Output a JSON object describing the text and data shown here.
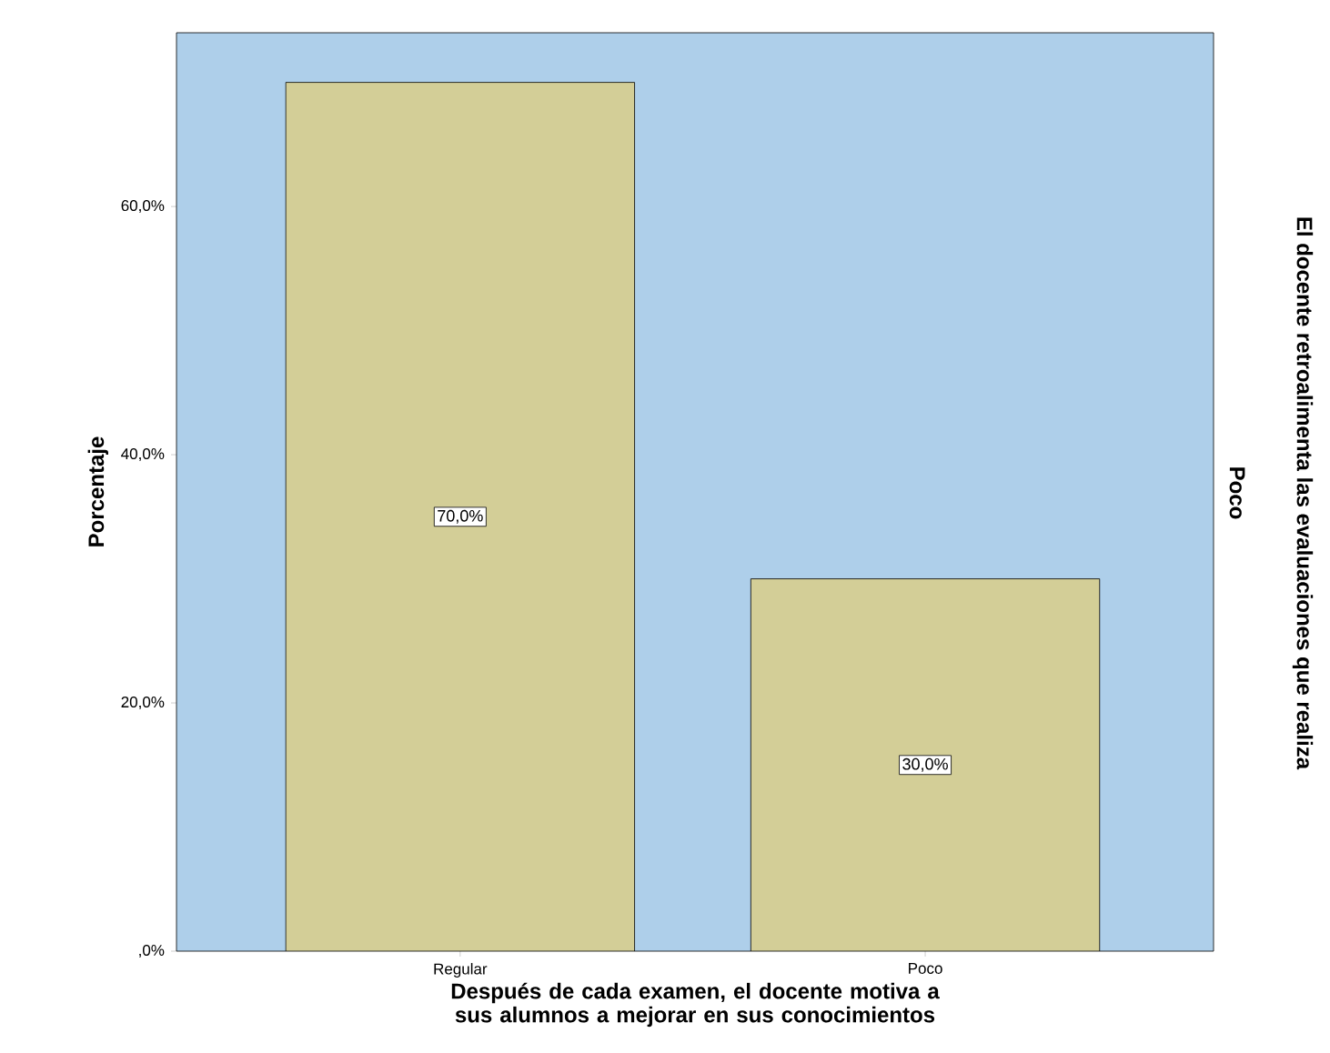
{
  "chart_data": {
    "type": "bar",
    "categories": [
      "Regular",
      "Poco"
    ],
    "values": [
      70,
      30
    ],
    "value_labels": [
      "70,0%",
      "30,0%"
    ],
    "color": "#d3ce97",
    "ylim": [
      0,
      74
    ],
    "yticks": [
      {
        "value": 0,
        "label": ",0%"
      },
      {
        "value": 20,
        "label": "20,0%"
      },
      {
        "value": 40,
        "label": "40,0%"
      },
      {
        "value": 60,
        "label": "60,0%"
      }
    ],
    "ylabel": "Porcentaje",
    "xlabel": "Después de cada examen, el docente motiva a sus alumnos a mejorar en sus conocimientos",
    "y2label": "El docente retroalimenta las evaluaciones que realiza",
    "annotations": [
      "Poco"
    ],
    "grid": false
  }
}
